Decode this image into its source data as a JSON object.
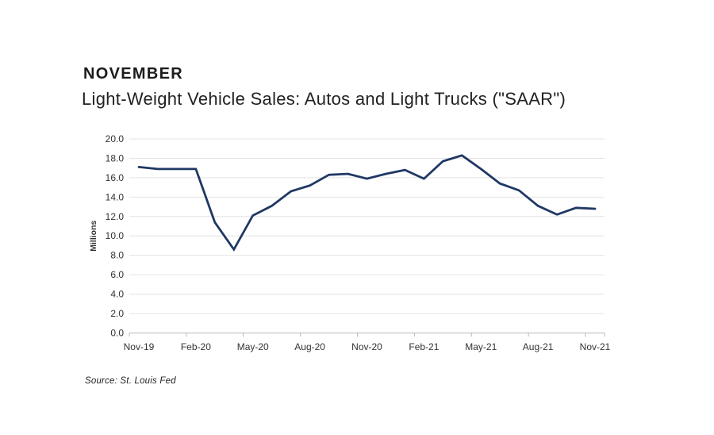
{
  "header": {
    "title": "NOVEMBER",
    "subtitle": "Light-Weight Vehicle Sales: Autos and Light Trucks (\"SAAR\")"
  },
  "chart_data": {
    "type": "line",
    "title": "Light-Weight Vehicle Sales: Autos and Light Trucks (\"SAAR\")",
    "xlabel": "",
    "ylabel": "Millions",
    "ylim": [
      0,
      20
    ],
    "ytick_step": 2,
    "ytick_labels": [
      "0.0",
      "2.0",
      "4.0",
      "6.0",
      "8.0",
      "10.0",
      "12.0",
      "14.0",
      "16.0",
      "18.0",
      "20.0"
    ],
    "grid": true,
    "legend_position": "none",
    "line_color": "#1f3864",
    "gridline_color": "#e4e4e4",
    "axis_line_color": "#b9b9b9",
    "axis_text_color": "#333333",
    "x_label_every": 3,
    "x_tick_labels_shown": [
      "Nov-19",
      "Feb-20",
      "May-20",
      "Aug-20",
      "Nov-20",
      "Feb-21",
      "May-21",
      "Aug-21",
      "Nov-21"
    ],
    "categories": [
      "Nov-19",
      "Dec-19",
      "Jan-20",
      "Feb-20",
      "Mar-20",
      "Apr-20",
      "May-20",
      "Jun-20",
      "Jul-20",
      "Aug-20",
      "Sep-20",
      "Oct-20",
      "Nov-20",
      "Dec-20",
      "Jan-21",
      "Feb-21",
      "Mar-21",
      "Apr-21",
      "May-21",
      "Jun-21",
      "Jul-21",
      "Aug-21",
      "Sep-21",
      "Oct-21",
      "Nov-21"
    ],
    "values": [
      17.1,
      16.9,
      16.9,
      16.9,
      11.4,
      8.6,
      12.1,
      13.1,
      14.6,
      15.2,
      16.3,
      16.4,
      15.9,
      16.4,
      16.8,
      15.9,
      17.7,
      18.3,
      16.9,
      15.4,
      14.7,
      13.1,
      12.2,
      12.9,
      12.8
    ]
  },
  "footer": {
    "source": "Source: St. Louis Fed"
  }
}
